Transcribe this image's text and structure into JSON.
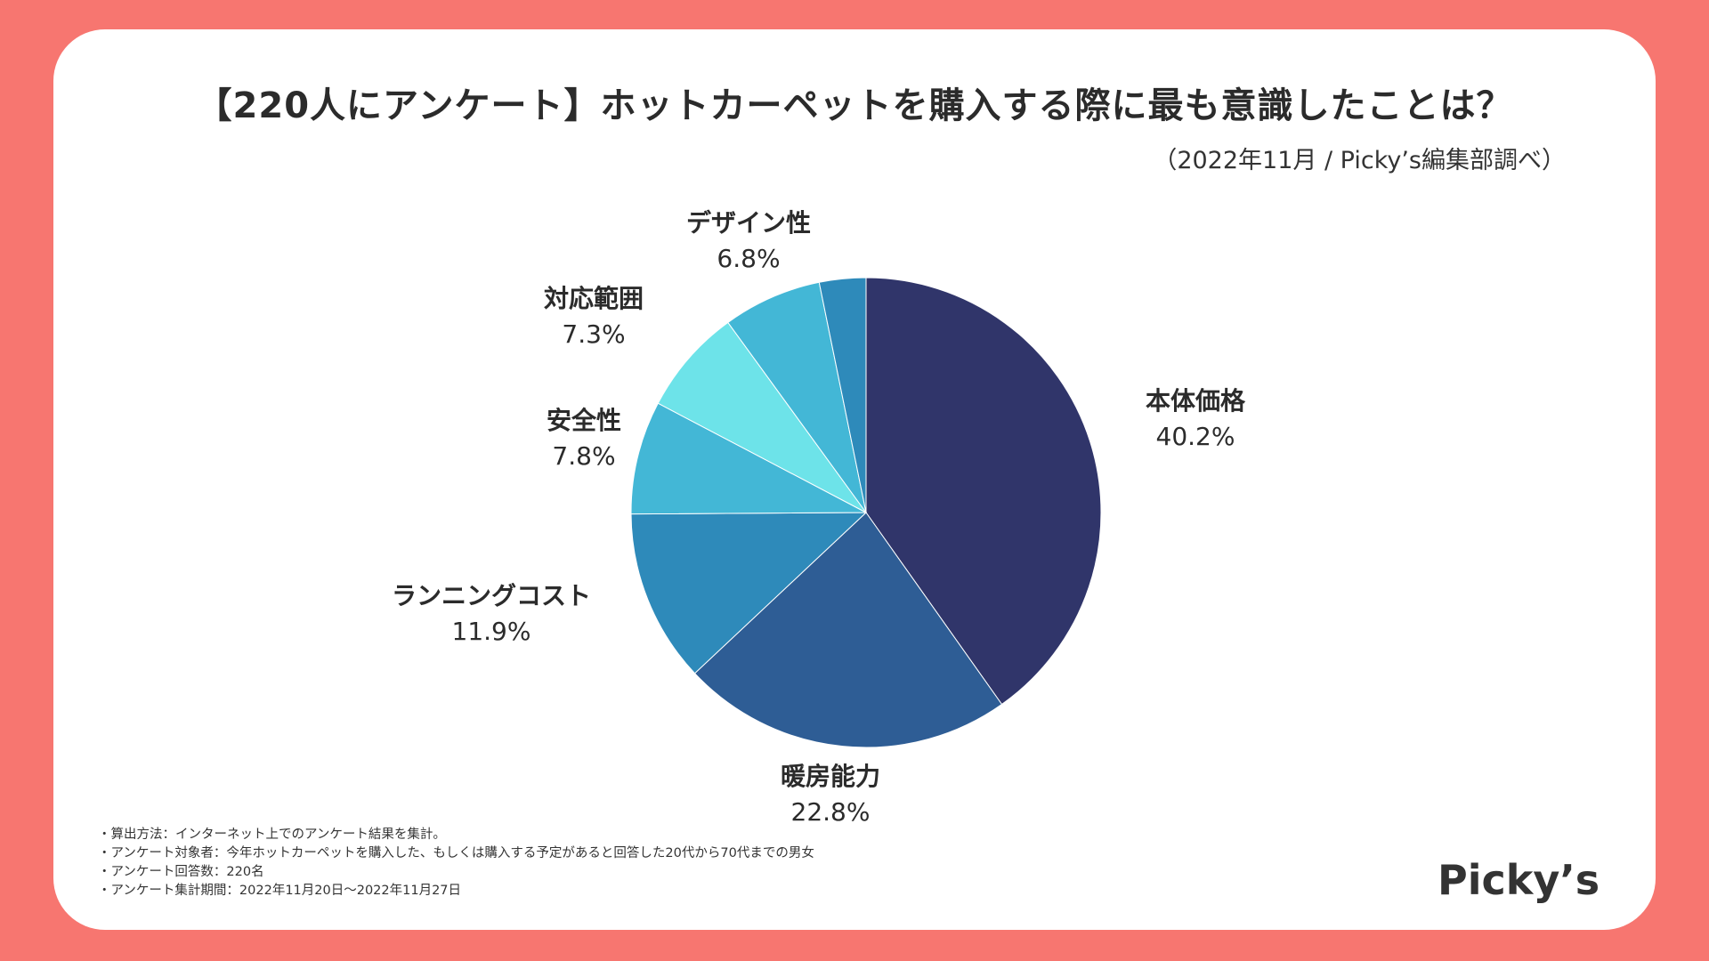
{
  "page": {
    "background_color": "#f77670",
    "card_color": "#ffffff"
  },
  "header": {
    "title": "【220人にアンケート】ホットカーペットを購入する際に最も意識したことは？",
    "source": "（2022年11月 / Picky’s編集部調べ）"
  },
  "chart_data": {
    "type": "pie",
    "title": "【220人にアンケート】ホットカーペットを購入する際に最も意識したことは？",
    "start_angle_deg": 0,
    "direction": "clockwise",
    "slices": [
      {
        "label": "本体価格",
        "value": 40.2,
        "value_label": "40.2%",
        "color": "#30356a"
      },
      {
        "label": "暖房能力",
        "value": 22.8,
        "value_label": "22.8%",
        "color": "#2e5d95"
      },
      {
        "label": "ランニングコスト",
        "value": 11.9,
        "value_label": "11.9%",
        "color": "#2e8aba"
      },
      {
        "label": "安全性",
        "value": 7.8,
        "value_label": "7.8%",
        "color": "#43b7d6"
      },
      {
        "label": "対応範囲",
        "value": 7.3,
        "value_label": "7.3%",
        "color": "#6de3e9"
      },
      {
        "label": "デザイン性",
        "value": 6.8,
        "value_label": "6.8%",
        "color": "#43b7d6"
      },
      {
        "label": "",
        "value": 3.2,
        "value_label": "",
        "color": "#2e8aba"
      }
    ]
  },
  "notes": [
    "・算出方法：インターネット上でのアンケート結果を集計。",
    "・アンケート対象者：今年ホットカーペットを購入した、もしくは購入する予定があると回答した20代から70代までの男女",
    "・アンケート回答数：220名",
    "・アンケート集計期間：2022年11月20日〜2022年11月27日"
  ],
  "logo": {
    "text": "Picky’s"
  }
}
